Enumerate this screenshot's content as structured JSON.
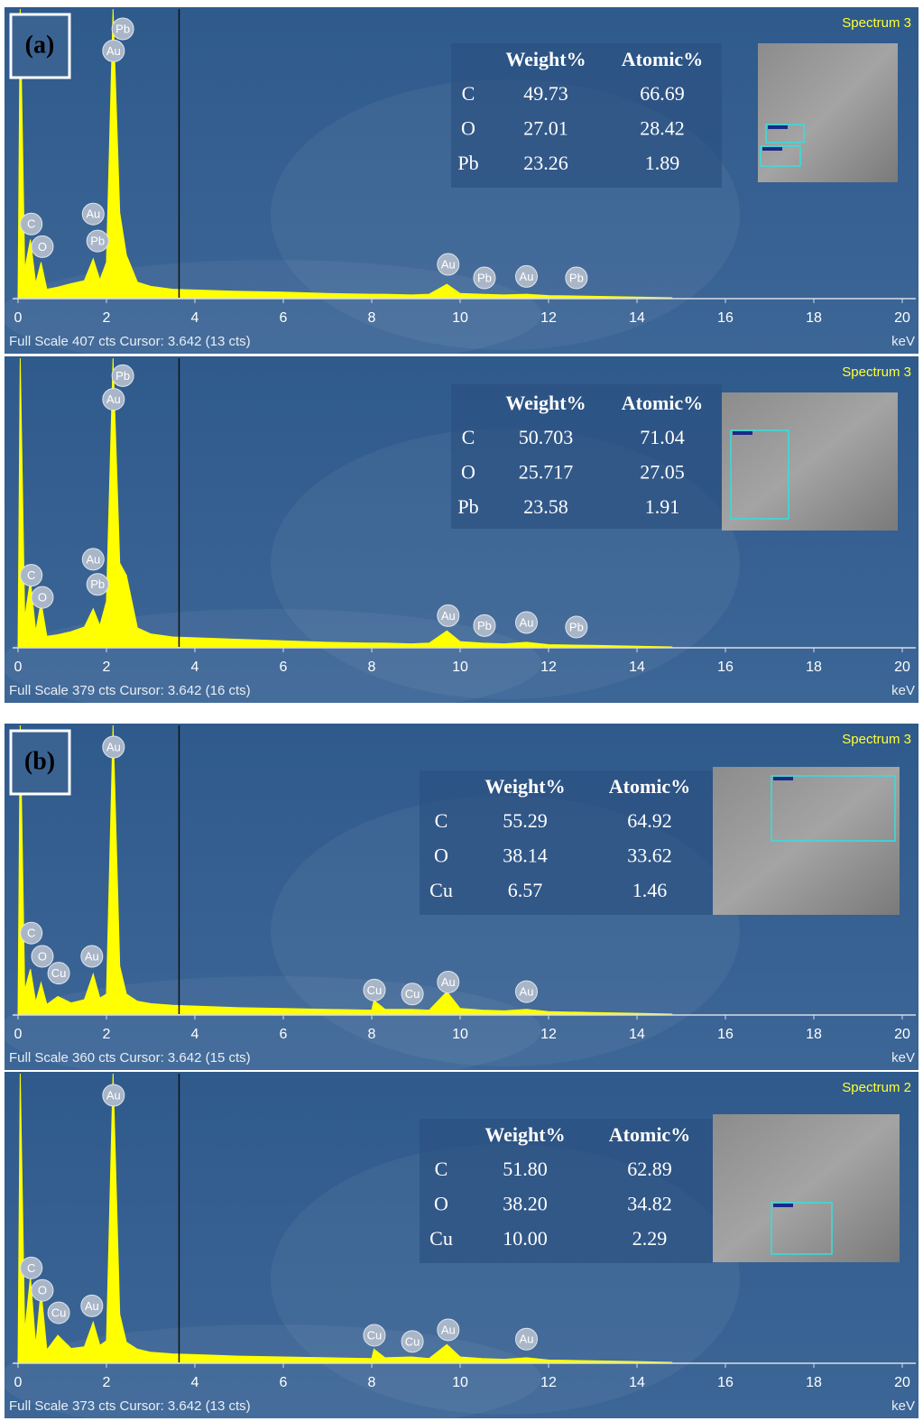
{
  "chart_data": [
    {
      "type": "area",
      "title": "Spectrum 3",
      "panel_label": "(a)",
      "footer": "Full Scale 407 cts Cursor: 3.642 (13 cts)",
      "xlabel": "keV",
      "x": [
        0,
        0.05,
        0.15,
        0.28,
        0.4,
        0.52,
        0.65,
        0.9,
        1.2,
        1.5,
        1.7,
        1.85,
        2.0,
        2.15,
        2.3,
        2.45,
        2.7,
        3.0,
        3.5,
        4,
        5,
        6,
        7,
        8,
        8.05,
        8.3,
        8.9,
        9.3,
        9.7,
        10.0,
        10.5,
        11.0,
        11.5,
        12,
        13,
        14,
        14.8
      ],
      "values": [
        0,
        407,
        40,
        82,
        20,
        50,
        12,
        15,
        20,
        24,
        55,
        25,
        50,
        407,
        120,
        60,
        22,
        16,
        12,
        11,
        9,
        8,
        6,
        5,
        5,
        5,
        4,
        5,
        19,
        6,
        5,
        4,
        5,
        3,
        2,
        1,
        0
      ],
      "color": "#ffff00",
      "xlim": [
        0,
        20
      ],
      "xticks": [
        0,
        2,
        4,
        6,
        8,
        10,
        12,
        14,
        16,
        18,
        20
      ],
      "ylim": [
        0,
        407
      ],
      "cursor": 3.642,
      "peaks": [
        {
          "label": "Pb",
          "x": 2.37,
          "y": 379
        },
        {
          "label": "Au",
          "x": 2.16,
          "y": 348
        },
        {
          "label": "C",
          "x": 0.3,
          "y": 104
        },
        {
          "label": "O",
          "x": 0.55,
          "y": 72
        },
        {
          "label": "Au",
          "x": 1.7,
          "y": 118
        },
        {
          "label": "Pb",
          "x": 1.8,
          "y": 80
        },
        {
          "label": "Au",
          "x": 9.73,
          "y": 47
        },
        {
          "label": "Pb",
          "x": 10.55,
          "y": 28
        },
        {
          "label": "Au",
          "x": 11.5,
          "y": 30
        },
        {
          "label": "Pb",
          "x": 12.63,
          "y": 28
        }
      ],
      "table": {
        "columns": [
          "Weight%",
          "Atomic%"
        ],
        "rows": [
          [
            "C",
            "49.73",
            "66.69"
          ],
          [
            "O",
            "27.01",
            "28.42"
          ],
          [
            "Pb",
            "23.26",
            "1.89"
          ]
        ]
      }
    },
    {
      "type": "area",
      "title": "Spectrum 3",
      "footer": "Full Scale 379 cts Cursor: 3.642 (16 cts)",
      "xlabel": "keV",
      "x": [
        0,
        0.05,
        0.15,
        0.28,
        0.4,
        0.52,
        0.65,
        0.9,
        1.2,
        1.5,
        1.7,
        1.85,
        2.0,
        2.15,
        2.3,
        2.45,
        2.7,
        3.0,
        3.5,
        4,
        5,
        6,
        7,
        8,
        8.05,
        8.3,
        8.9,
        9.3,
        9.7,
        10.0,
        10.5,
        11.0,
        11.5,
        12,
        13,
        14,
        14.8
      ],
      "values": [
        0,
        379,
        38,
        88,
        20,
        59,
        14,
        16,
        20,
        26,
        50,
        28,
        60,
        379,
        110,
        94,
        25,
        17,
        13,
        12,
        10,
        8,
        6,
        5,
        5,
        5,
        4,
        5,
        21,
        7,
        5,
        4,
        6,
        3,
        2,
        1,
        0
      ],
      "color": "#ffff00",
      "xlim": [
        0,
        20
      ],
      "xticks": [
        0,
        2,
        4,
        6,
        8,
        10,
        12,
        14,
        16,
        18,
        20
      ],
      "ylim": [
        0,
        379
      ],
      "cursor": 3.642,
      "peaks": [
        {
          "label": "Pb",
          "x": 2.37,
          "y": 356
        },
        {
          "label": "Au",
          "x": 2.16,
          "y": 325
        },
        {
          "label": "C",
          "x": 0.3,
          "y": 94
        },
        {
          "label": "O",
          "x": 0.55,
          "y": 65
        },
        {
          "label": "Au",
          "x": 1.7,
          "y": 115
        },
        {
          "label": "Pb",
          "x": 1.8,
          "y": 82
        },
        {
          "label": "Au",
          "x": 9.73,
          "y": 41
        },
        {
          "label": "Pb",
          "x": 10.55,
          "y": 28
        },
        {
          "label": "Au",
          "x": 11.5,
          "y": 32
        },
        {
          "label": "Pb",
          "x": 12.63,
          "y": 26
        }
      ],
      "table": {
        "columns": [
          "Weight%",
          "Atomic%"
        ],
        "rows": [
          [
            "C",
            "50.703",
            "71.04"
          ],
          [
            "O",
            "25.717",
            "27.05"
          ],
          [
            "Pb",
            "23.58",
            "1.91"
          ]
        ]
      }
    },
    {
      "type": "area",
      "title": "Spectrum 3",
      "panel_label": "(b)",
      "footer": "Full Scale 360 cts Cursor: 3.642 (15 cts)",
      "xlabel": "keV",
      "x": [
        0,
        0.05,
        0.15,
        0.28,
        0.4,
        0.52,
        0.65,
        0.9,
        1.2,
        1.5,
        1.7,
        1.85,
        2.0,
        2.15,
        2.3,
        2.45,
        2.7,
        3.0,
        3.5,
        4,
        5,
        6,
        7,
        8,
        8.05,
        8.3,
        8.9,
        9.3,
        9.7,
        10.0,
        10.5,
        11.0,
        11.5,
        12,
        13,
        14,
        14.8
      ],
      "values": [
        0,
        360,
        30,
        56,
        15,
        39,
        12,
        22,
        14,
        18,
        50,
        20,
        25,
        360,
        60,
        25,
        16,
        13,
        11,
        10,
        8,
        7,
        6,
        5,
        17,
        6,
        6,
        5,
        28,
        7,
        5,
        4,
        6,
        3,
        2,
        1,
        0
      ],
      "color": "#ffff00",
      "xlim": [
        0,
        20
      ],
      "xticks": [
        0,
        2,
        4,
        6,
        8,
        10,
        12,
        14,
        16,
        18,
        20
      ],
      "ylim": [
        0,
        360
      ],
      "cursor": 3.642,
      "peaks": [
        {
          "label": "Au",
          "x": 2.16,
          "y": 333
        },
        {
          "label": "C",
          "x": 0.3,
          "y": 101
        },
        {
          "label": "O",
          "x": 0.55,
          "y": 72
        },
        {
          "label": "Cu",
          "x": 0.92,
          "y": 51
        },
        {
          "label": "Au",
          "x": 1.67,
          "y": 72
        },
        {
          "label": "Cu",
          "x": 8.06,
          "y": 30
        },
        {
          "label": "Cu",
          "x": 8.92,
          "y": 25
        },
        {
          "label": "Au",
          "x": 9.73,
          "y": 40
        },
        {
          "label": "Au",
          "x": 11.5,
          "y": 28
        }
      ],
      "table": {
        "columns": [
          "Weight%",
          "Atomic%"
        ],
        "rows": [
          [
            "C",
            "55.29",
            "64.92"
          ],
          [
            "O",
            "38.14",
            "33.62"
          ],
          [
            "Cu",
            "6.57",
            "1.46"
          ]
        ]
      }
    },
    {
      "type": "area",
      "title": "Spectrum 2",
      "footer": "Full Scale 373 cts Cursor: 3.642 (13 cts)",
      "xlabel": "keV",
      "x": [
        0,
        0.05,
        0.15,
        0.28,
        0.4,
        0.52,
        0.65,
        0.9,
        1.2,
        1.5,
        1.7,
        1.85,
        2.0,
        2.15,
        2.3,
        2.45,
        2.7,
        3.0,
        3.5,
        4,
        5,
        6,
        7,
        8,
        8.05,
        8.3,
        8.9,
        9.3,
        9.7,
        10.0,
        10.5,
        11.0,
        11.5,
        12,
        13,
        14,
        14.8
      ],
      "values": [
        0,
        373,
        40,
        110,
        22,
        93,
        16,
        35,
        18,
        20,
        52,
        22,
        28,
        373,
        62,
        26,
        17,
        13,
        11,
        10,
        8,
        7,
        6,
        5,
        17,
        6,
        7,
        5,
        23,
        7,
        5,
        4,
        6,
        3,
        2,
        1,
        0
      ],
      "color": "#ffff00",
      "xlim": [
        0,
        20
      ],
      "xticks": [
        0,
        2,
        4,
        6,
        8,
        10,
        12,
        14,
        16,
        18,
        20
      ],
      "ylim": [
        0,
        373
      ],
      "cursor": 3.642,
      "peaks": [
        {
          "label": "Au",
          "x": 2.16,
          "y": 345
        },
        {
          "label": "C",
          "x": 0.3,
          "y": 122
        },
        {
          "label": "O",
          "x": 0.55,
          "y": 93
        },
        {
          "label": "Cu",
          "x": 0.92,
          "y": 64
        },
        {
          "label": "Au",
          "x": 1.67,
          "y": 73
        },
        {
          "label": "Cu",
          "x": 8.06,
          "y": 35
        },
        {
          "label": "Cu",
          "x": 8.92,
          "y": 27
        },
        {
          "label": "Au",
          "x": 9.73,
          "y": 42
        },
        {
          "label": "Au",
          "x": 11.5,
          "y": 30
        }
      ],
      "table": {
        "columns": [
          "Weight%",
          "Atomic%"
        ],
        "rows": [
          [
            "C",
            "51.80",
            "62.89"
          ],
          [
            "O",
            "38.20",
            "34.82"
          ],
          [
            "Cu",
            "10.00",
            "2.29"
          ]
        ]
      }
    }
  ]
}
